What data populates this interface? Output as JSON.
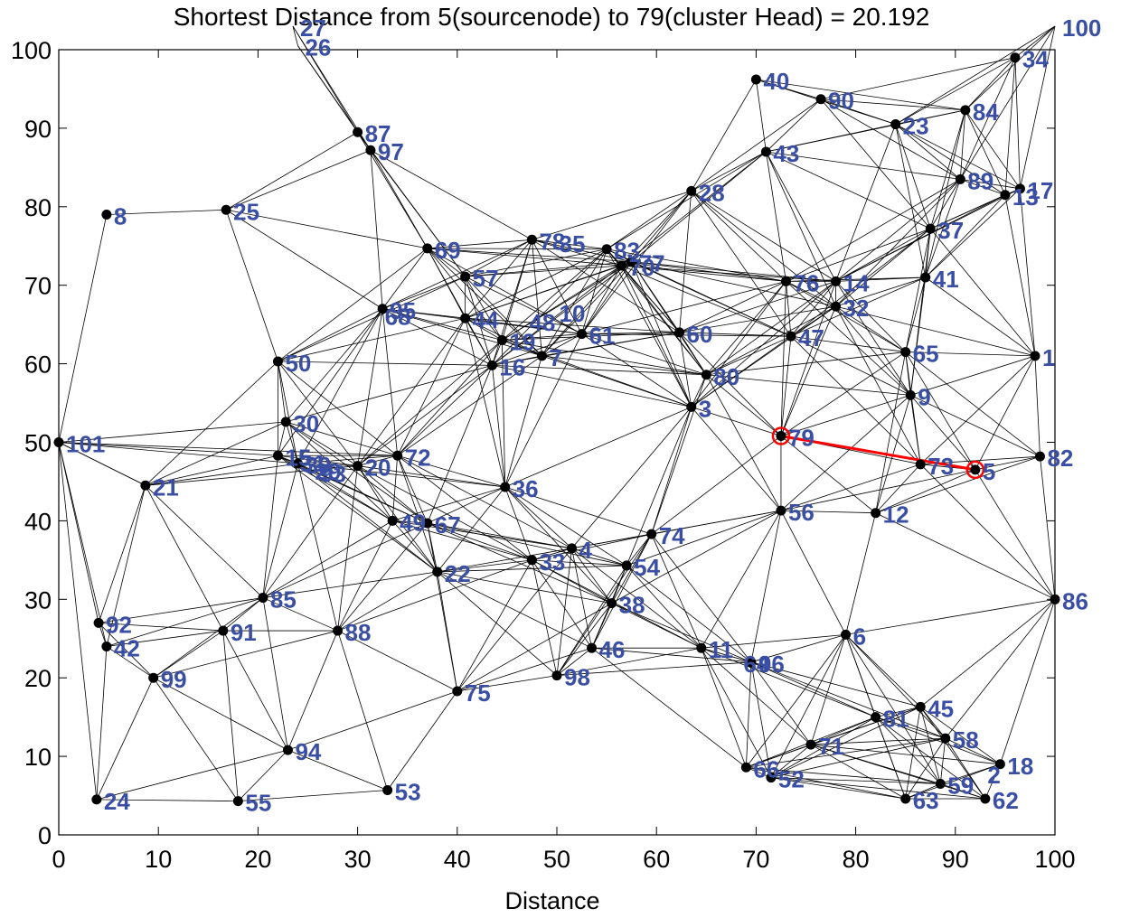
{
  "chart_data": {
    "type": "scatter",
    "title": "Shortest Distance from 5(sourcenode) to 79(cluster Head) = 20.192",
    "xlabel": "Distance",
    "ylabel": "",
    "xlim": [
      0,
      100
    ],
    "ylim": [
      0,
      100
    ],
    "xticks": [
      0,
      10,
      20,
      30,
      40,
      50,
      60,
      70,
      80,
      90,
      100
    ],
    "yticks": [
      0,
      10,
      20,
      30,
      40,
      50,
      60,
      70,
      80,
      90,
      100
    ],
    "grid": false,
    "colors": {
      "node": "#000000",
      "edge": "#000000",
      "label": "#3a4fa3",
      "path": "#ff0000"
    },
    "source_node": "5",
    "cluster_head": "79",
    "shortest_path": [
      "5",
      "79"
    ],
    "nodes": [
      {
        "id": "1",
        "x": 98,
        "y": 61
      },
      {
        "id": "3",
        "x": 63.5,
        "y": 54.5
      },
      {
        "id": "4",
        "x": 51.5,
        "y": 36.5
      },
      {
        "id": "5",
        "x": 92,
        "y": 46.5
      },
      {
        "id": "6",
        "x": 79,
        "y": 25.5
      },
      {
        "id": "7",
        "x": 48.5,
        "y": 61
      },
      {
        "id": "8",
        "x": 4.8,
        "y": 79
      },
      {
        "id": "9",
        "x": 85.5,
        "y": 56
      },
      {
        "id": "11",
        "x": 64.5,
        "y": 23.8
      },
      {
        "id": "12",
        "x": 82,
        "y": 41
      },
      {
        "id": "13",
        "x": 95,
        "y": 81.5
      },
      {
        "id": "14",
        "x": 78,
        "y": 70.5
      },
      {
        "id": "15",
        "x": 22,
        "y": 48.3
      },
      {
        "id": "16",
        "x": 43.5,
        "y": 59.8
      },
      {
        "id": "17",
        "x": 96.5,
        "y": 82.3
      },
      {
        "id": "18",
        "x": 94.5,
        "y": 9
      },
      {
        "id": "19",
        "x": 44.5,
        "y": 63
      },
      {
        "id": "20",
        "x": 30,
        "y": 47
      },
      {
        "id": "21",
        "x": 8.7,
        "y": 44.5
      },
      {
        "id": "22",
        "x": 38,
        "y": 33.5
      },
      {
        "id": "23",
        "x": 84,
        "y": 90.5
      },
      {
        "id": "24",
        "x": 3.8,
        "y": 4.5
      },
      {
        "id": "25",
        "x": 16.8,
        "y": 79.6
      },
      {
        "id": "26",
        "x": 24,
        "y": 100.5
      },
      {
        "id": "27",
        "x": 23.5,
        "y": 103
      },
      {
        "id": "28",
        "x": 63.5,
        "y": 82
      },
      {
        "id": "30",
        "x": 22.8,
        "y": 52.6
      },
      {
        "id": "32",
        "x": 78,
        "y": 67.3
      },
      {
        "id": "33",
        "x": 47.5,
        "y": 35
      },
      {
        "id": "34",
        "x": 96,
        "y": 99
      },
      {
        "id": "36",
        "x": 44.8,
        "y": 44.3
      },
      {
        "id": "37",
        "x": 87.5,
        "y": 77.2
      },
      {
        "id": "38",
        "x": 55.5,
        "y": 29.5
      },
      {
        "id": "39",
        "x": 24,
        "y": 47.3
      },
      {
        "id": "40",
        "x": 70,
        "y": 96.2
      },
      {
        "id": "41",
        "x": 87,
        "y": 71
      },
      {
        "id": "42",
        "x": 4.8,
        "y": 24
      },
      {
        "id": "43",
        "x": 71,
        "y": 87
      },
      {
        "id": "44",
        "x": 40.8,
        "y": 65.8
      },
      {
        "id": "45",
        "x": 86.5,
        "y": 16.3
      },
      {
        "id": "46",
        "x": 53.5,
        "y": 23.8
      },
      {
        "id": "47",
        "x": 73.5,
        "y": 63.5
      },
      {
        "id": "49",
        "x": 33.5,
        "y": 40
      },
      {
        "id": "50",
        "x": 22,
        "y": 60.3
      },
      {
        "id": "52",
        "x": 71.5,
        "y": 7.3
      },
      {
        "id": "53",
        "x": 33,
        "y": 5.7
      },
      {
        "id": "54",
        "x": 57,
        "y": 34.3
      },
      {
        "id": "55",
        "x": 18,
        "y": 4.3
      },
      {
        "id": "56",
        "x": 72.5,
        "y": 41.3
      },
      {
        "id": "57",
        "x": 40.8,
        "y": 71.1
      },
      {
        "id": "58",
        "x": 89,
        "y": 12.3
      },
      {
        "id": "59",
        "x": 88.5,
        "y": 6.5
      },
      {
        "id": "60",
        "x": 62.3,
        "y": 64
      },
      {
        "id": "61",
        "x": 52.5,
        "y": 63.8
      },
      {
        "id": "62",
        "x": 93,
        "y": 4.6
      },
      {
        "id": "63",
        "x": 85,
        "y": 4.6
      },
      {
        "id": "65",
        "x": 85,
        "y": 61.5
      },
      {
        "id": "66",
        "x": 69,
        "y": 8.6
      },
      {
        "id": "67",
        "x": 37,
        "y": 39.7
      },
      {
        "id": "69",
        "x": 37,
        "y": 74.7
      },
      {
        "id": "70",
        "x": 56.5,
        "y": 72.5
      },
      {
        "id": "71",
        "x": 75.5,
        "y": 11.5
      },
      {
        "id": "72",
        "x": 34,
        "y": 48.3
      },
      {
        "id": "73",
        "x": 86.5,
        "y": 47.2
      },
      {
        "id": "74",
        "x": 59.5,
        "y": 38.3
      },
      {
        "id": "75",
        "x": 40,
        "y": 18.3
      },
      {
        "id": "76",
        "x": 73,
        "y": 70.5
      },
      {
        "id": "77",
        "x": 57.5,
        "y": 73
      },
      {
        "id": "78",
        "x": 47.5,
        "y": 75.8
      },
      {
        "id": "79",
        "x": 72.5,
        "y": 50.8
      },
      {
        "id": "80",
        "x": 65,
        "y": 58.6
      },
      {
        "id": "81",
        "x": 82,
        "y": 15
      },
      {
        "id": "82",
        "x": 98.5,
        "y": 48.2
      },
      {
        "id": "83",
        "x": 55,
        "y": 74.6
      },
      {
        "id": "84",
        "x": 91,
        "y": 92.3
      },
      {
        "id": "85",
        "x": 20.5,
        "y": 30.2
      },
      {
        "id": "86",
        "x": 100,
        "y": 30
      },
      {
        "id": "87",
        "x": 30,
        "y": 89.5
      },
      {
        "id": "88",
        "x": 28,
        "y": 26
      },
      {
        "id": "89",
        "x": 90.5,
        "y": 83.5
      },
      {
        "id": "90",
        "x": 76.5,
        "y": 93.7
      },
      {
        "id": "91",
        "x": 16.5,
        "y": 26
      },
      {
        "id": "92",
        "x": 4,
        "y": 27
      },
      {
        "id": "94",
        "x": 23,
        "y": 10.8
      },
      {
        "id": "95",
        "x": 32.5,
        "y": 67
      },
      {
        "id": "96",
        "x": 69.5,
        "y": 22
      },
      {
        "id": "97",
        "x": 31.3,
        "y": 87.2
      },
      {
        "id": "98",
        "x": 50,
        "y": 20.3
      },
      {
        "id": "99",
        "x": 9.5,
        "y": 20
      },
      {
        "id": "100",
        "x": 100,
        "y": 103
      },
      {
        "id": "101",
        "x": 0,
        "y": 50
      }
    ],
    "extra_labels": [
      {
        "text": "2",
        "x": 92.5,
        "y": 7.8
      },
      {
        "text": "10",
        "x": 49.5,
        "y": 66.6
      },
      {
        "text": "29",
        "x": 25,
        "y": 46.5
      },
      {
        "text": "31",
        "x": 23.5,
        "y": 47.5
      },
      {
        "text": "35",
        "x": 49.5,
        "y": 75.5
      },
      {
        "text": "48",
        "x": 46.5,
        "y": 65.5
      },
      {
        "text": "64",
        "x": 68,
        "y": 22
      },
      {
        "text": "68",
        "x": 32,
        "y": 66.2
      },
      {
        "text": "93",
        "x": 25.5,
        "y": 46.2
      }
    ]
  }
}
